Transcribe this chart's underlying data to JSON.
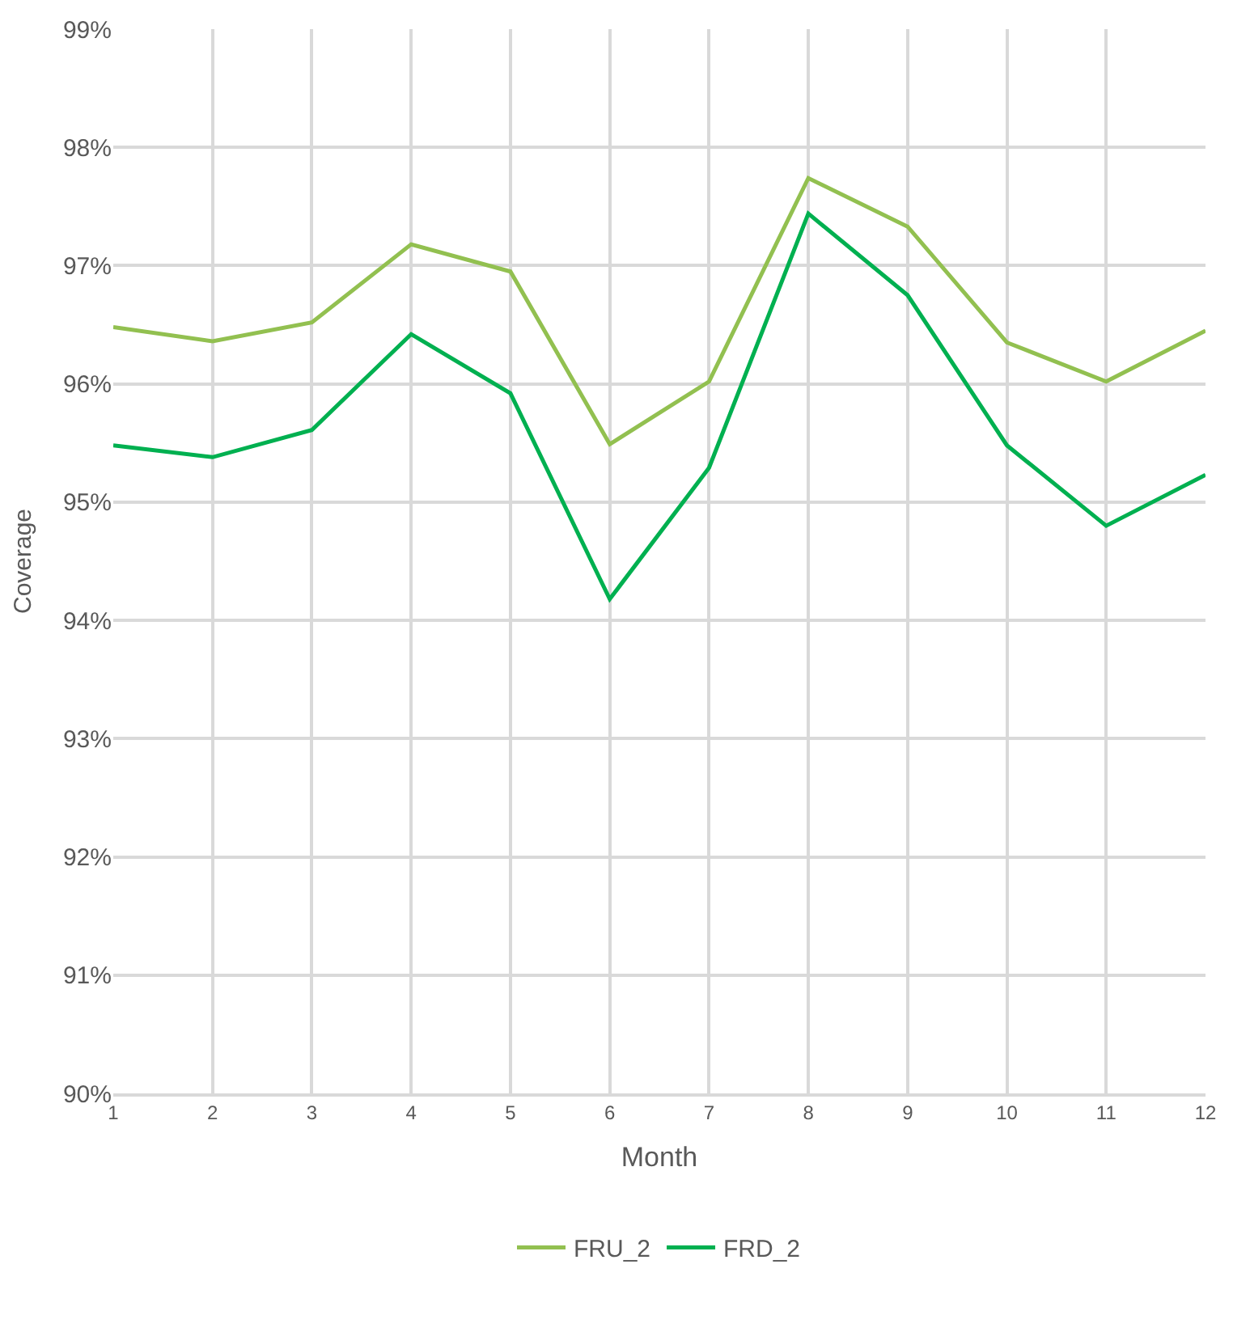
{
  "chart_data": {
    "type": "line",
    "xlabel": "Month",
    "ylabel": "Coverage",
    "x": [
      1,
      2,
      3,
      4,
      5,
      6,
      7,
      8,
      9,
      10,
      11,
      12
    ],
    "series": [
      {
        "name": "FRU_2",
        "color": "#92c050",
        "values": [
          96.48,
          96.36,
          96.52,
          97.18,
          96.95,
          95.49,
          96.02,
          97.74,
          97.33,
          96.35,
          96.02,
          96.45
        ]
      },
      {
        "name": "FRD_2",
        "color": "#00b050",
        "values": [
          95.48,
          95.38,
          95.61,
          96.42,
          95.92,
          94.18,
          95.29,
          97.44,
          96.75,
          95.48,
          94.8,
          95.23
        ]
      }
    ],
    "xlim": [
      1,
      12
    ],
    "xticks": [
      1,
      2,
      3,
      4,
      5,
      6,
      7,
      8,
      9,
      10,
      11,
      12
    ],
    "ylim": [
      90,
      99
    ],
    "yticks": [
      {
        "value": 90,
        "label": "90%"
      },
      {
        "value": 91,
        "label": "91%"
      },
      {
        "value": 92,
        "label": "92%"
      },
      {
        "value": 93,
        "label": "93%"
      },
      {
        "value": 94,
        "label": "94%"
      },
      {
        "value": 95,
        "label": "95%"
      },
      {
        "value": 96,
        "label": "96%"
      },
      {
        "value": 97,
        "label": "97%"
      },
      {
        "value": 98,
        "label": "98%"
      },
      {
        "value": 99,
        "label": "99%"
      }
    ],
    "grid": true,
    "legend": "bottom",
    "marker": "none",
    "line_style": "solid"
  }
}
